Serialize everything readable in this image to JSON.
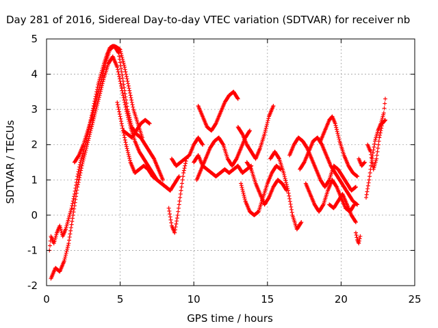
{
  "chart_data": {
    "type": "scatter",
    "title": "Day 281 of 2016, Sidereal Day-to-day VTEC variation (SDTVAR) for receiver nb",
    "xlabel": "GPS time / hours",
    "ylabel": "SDTVAR / TECUs",
    "xlim": [
      0,
      25
    ],
    "ylim": [
      -2,
      5
    ],
    "xticks": [
      "0",
      "5",
      "10",
      "15",
      "20",
      "25"
    ],
    "yticks": [
      "-2",
      "-1",
      "0",
      "1",
      "2",
      "3",
      "4",
      "5"
    ],
    "xtick_values": [
      0,
      5,
      10,
      15,
      20,
      25
    ],
    "ytick_values": [
      -2,
      -1,
      0,
      1,
      2,
      3,
      4,
      5
    ],
    "grid": true,
    "marker": "+",
    "color": "#ff0000",
    "tracks": [
      {
        "x": [
          0.2,
          0.3,
          0.5,
          0.7,
          0.9,
          1.1,
          1.3,
          1.5,
          1.7,
          1.9,
          2.1,
          2.3,
          2.5,
          2.7,
          2.9,
          3.1,
          3.3,
          3.5,
          3.7,
          3.9,
          4.1,
          4.3,
          4.5,
          4.7,
          5.0,
          5.3,
          5.6,
          5.9,
          6.2,
          6.5
        ],
        "y": [
          -1.0,
          -0.6,
          -0.8,
          -0.5,
          -0.3,
          -0.6,
          -0.4,
          -0.1,
          0.2,
          0.6,
          1.1,
          1.5,
          1.8,
          2.1,
          2.5,
          2.9,
          3.3,
          3.7,
          4.0,
          4.3,
          4.55,
          4.75,
          4.8,
          4.78,
          4.7,
          4.2,
          3.6,
          3.0,
          2.6,
          2.2
        ]
      },
      {
        "x": [
          0.3,
          0.6,
          0.9,
          1.2,
          1.5,
          1.8,
          2.1,
          2.4,
          2.7,
          3.0,
          3.3,
          3.6,
          3.9,
          4.2,
          4.5,
          4.8,
          5.1,
          5.4,
          5.7,
          6.0,
          6.3,
          6.6,
          6.9,
          7.2,
          7.5,
          7.8,
          8.1,
          8.4
        ],
        "y": [
          -1.8,
          -1.5,
          -1.6,
          -1.3,
          -0.8,
          0.0,
          0.8,
          1.4,
          1.9,
          2.4,
          2.9,
          3.4,
          3.9,
          4.3,
          4.5,
          4.2,
          3.6,
          3.0,
          2.5,
          2.1,
          1.8,
          1.6,
          1.4,
          1.2,
          1.0,
          0.9,
          0.8,
          0.7
        ]
      },
      {
        "x": [
          1.9,
          2.2,
          2.5,
          2.8,
          3.1,
          3.4,
          3.7,
          4.0,
          4.3,
          4.6,
          4.9,
          5.2,
          5.5,
          5.8,
          6.1,
          6.4,
          6.7,
          7.0,
          7.3,
          7.6,
          7.9
        ],
        "y": [
          1.5,
          1.7,
          2.0,
          2.4,
          2.8,
          3.3,
          3.8,
          4.3,
          4.7,
          4.8,
          4.6,
          3.8,
          3.0,
          2.5,
          2.3,
          2.2,
          2.0,
          1.8,
          1.6,
          1.3,
          1.0
        ]
      },
      {
        "x": [
          4.8,
          5.1,
          5.4,
          5.7,
          6.0,
          6.3,
          6.6,
          6.9,
          7.2,
          7.5,
          7.8,
          8.1,
          8.4,
          8.7,
          9.0
        ],
        "y": [
          3.2,
          2.6,
          2.0,
          1.5,
          1.2,
          1.3,
          1.4,
          1.3,
          1.1,
          1.0,
          0.9,
          0.8,
          0.7,
          0.9,
          1.1
        ]
      },
      {
        "x": [
          5.2,
          5.5,
          5.8,
          6.1,
          6.4,
          6.7,
          7.0
        ],
        "y": [
          2.4,
          2.3,
          2.2,
          2.4,
          2.6,
          2.7,
          2.6
        ]
      },
      {
        "x": [
          8.3,
          8.5,
          8.7,
          8.9,
          9.1,
          9.3,
          9.5
        ],
        "y": [
          0.2,
          -0.3,
          -0.5,
          0.0,
          0.6,
          1.2,
          1.6
        ]
      },
      {
        "x": [
          8.5,
          8.8,
          9.1,
          9.4,
          9.7,
          10.0,
          10.3,
          10.6
        ],
        "y": [
          1.6,
          1.4,
          1.5,
          1.6,
          1.7,
          2.0,
          2.2,
          2.0
        ]
      },
      {
        "x": [
          10.3,
          10.6,
          10.9,
          11.2,
          11.5,
          11.8,
          12.1,
          12.4,
          12.7,
          13.0
        ],
        "y": [
          3.1,
          2.8,
          2.5,
          2.4,
          2.6,
          2.9,
          3.2,
          3.4,
          3.5,
          3.3
        ]
      },
      {
        "x": [
          10.0,
          10.3,
          10.6,
          10.9,
          11.2,
          11.5,
          11.8,
          12.1,
          12.4,
          12.7,
          13.0,
          13.3,
          13.6,
          13.9
        ],
        "y": [
          1.5,
          1.7,
          1.4,
          1.3,
          1.2,
          1.1,
          1.2,
          1.3,
          1.2,
          1.3,
          1.4,
          1.2,
          1.3,
          1.4
        ]
      },
      {
        "x": [
          10.2,
          10.5,
          10.8,
          11.1,
          11.4,
          11.7,
          12.0,
          12.3,
          12.6,
          12.9,
          13.2,
          13.5,
          13.8
        ],
        "y": [
          1.0,
          1.3,
          1.6,
          1.9,
          2.1,
          2.2,
          2.0,
          1.6,
          1.4,
          1.6,
          1.9,
          2.2,
          2.4
        ]
      },
      {
        "x": [
          13.0,
          13.3,
          13.6,
          13.9,
          14.2,
          14.5,
          14.8,
          15.1,
          15.4
        ],
        "y": [
          2.5,
          2.3,
          2.0,
          1.8,
          1.6,
          1.9,
          2.3,
          2.8,
          3.1
        ]
      },
      {
        "x": [
          13.2,
          13.5,
          13.8,
          14.1,
          14.4,
          14.7,
          15.0,
          15.3,
          15.6,
          15.9
        ],
        "y": [
          0.9,
          0.4,
          0.1,
          0.0,
          0.1,
          0.5,
          0.9,
          1.2,
          1.4,
          1.3
        ]
      },
      {
        "x": [
          13.6,
          13.9,
          14.2,
          14.5,
          14.8,
          15.1,
          15.4,
          15.7,
          16.0,
          16.3
        ],
        "y": [
          1.5,
          1.3,
          0.9,
          0.6,
          0.3,
          0.5,
          0.8,
          1.0,
          0.9,
          0.7
        ]
      },
      {
        "x": [
          15.2,
          15.5,
          15.8,
          16.1,
          16.4,
          16.7,
          17.0,
          17.3
        ],
        "y": [
          1.6,
          1.8,
          1.6,
          1.2,
          0.7,
          0.0,
          -0.4,
          -0.2
        ]
      },
      {
        "x": [
          16.5,
          16.8,
          17.1,
          17.4,
          17.7,
          18.0,
          18.3,
          18.6,
          18.9,
          19.2,
          19.5,
          19.8,
          20.1,
          20.4,
          20.7,
          21.0
        ],
        "y": [
          1.7,
          2.0,
          2.2,
          2.1,
          1.9,
          1.6,
          1.3,
          1.0,
          0.8,
          1.0,
          1.4,
          1.3,
          1.1,
          0.9,
          0.7,
          0.8
        ]
      },
      {
        "x": [
          17.2,
          17.5,
          17.8,
          18.1,
          18.4,
          18.7,
          19.0,
          19.3,
          19.6,
          19.9,
          20.2,
          20.5,
          20.8,
          21.1
        ],
        "y": [
          1.3,
          1.5,
          1.8,
          2.1,
          2.2,
          2.0,
          1.7,
          1.4,
          1.2,
          1.0,
          0.8,
          0.6,
          0.4,
          0.3
        ]
      },
      {
        "x": [
          17.6,
          17.9,
          18.2,
          18.5,
          18.8,
          19.1,
          19.4,
          19.7,
          20.0,
          20.3,
          20.6,
          20.9
        ],
        "y": [
          0.9,
          0.6,
          0.3,
          0.1,
          0.3,
          0.7,
          1.0,
          0.8,
          0.5,
          0.2,
          0.1,
          0.3
        ]
      },
      {
        "x": [
          18.6,
          18.9,
          19.2,
          19.4,
          19.6,
          19.9,
          20.2,
          20.5,
          20.8,
          21.1
        ],
        "y": [
          2.1,
          2.4,
          2.7,
          2.8,
          2.6,
          2.1,
          1.7,
          1.4,
          1.2,
          1.1
        ]
      },
      {
        "x": [
          19.2,
          19.5,
          19.8,
          20.1,
          20.4,
          20.7,
          21.0
        ],
        "y": [
          0.3,
          0.2,
          0.4,
          0.6,
          0.3,
          0.0,
          -0.2
        ]
      },
      {
        "x": [
          21.0,
          21.1,
          21.2,
          21.3
        ],
        "y": [
          -0.5,
          -0.7,
          -0.8,
          -0.6
        ]
      },
      {
        "x": [
          21.2,
          21.4,
          21.6
        ],
        "y": [
          1.6,
          1.4,
          1.5
        ]
      },
      {
        "x": [
          21.7,
          21.9,
          22.1,
          22.3,
          22.5,
          22.7,
          22.9,
          23.0
        ],
        "y": [
          0.5,
          1.0,
          1.6,
          2.1,
          2.4,
          2.6,
          2.9,
          3.3
        ]
      },
      {
        "x": [
          21.8,
          22.0,
          22.2,
          22.4,
          22.6,
          22.8,
          23.0
        ],
        "y": [
          2.0,
          1.8,
          1.3,
          1.6,
          2.2,
          2.6,
          2.7
        ]
      }
    ]
  }
}
